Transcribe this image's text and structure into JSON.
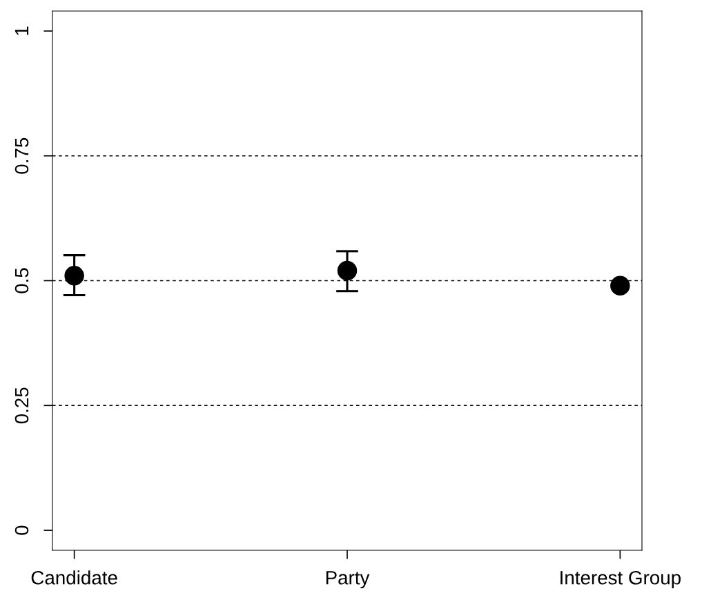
{
  "chart_data": {
    "type": "scatter",
    "categories": [
      "Candidate",
      "Party",
      "Interest Group"
    ],
    "series": [
      {
        "color": "#000000",
        "values": [
          0.51,
          0.52,
          0.49
        ],
        "errors": [
          [
            0.471,
            0.551
          ],
          [
            0.479,
            0.559
          ],
          null
        ]
      }
    ],
    "ylim": [
      -0.04,
      1.04
    ],
    "yticks": [
      0,
      0.25,
      0.5,
      0.75,
      1
    ],
    "ref_lines": [
      {
        "axis": "y",
        "value": 0.25,
        "line_style": "dashed",
        "color": "#000000"
      },
      {
        "axis": "y",
        "value": 0.5,
        "line_style": "dashed",
        "color": "#000000"
      },
      {
        "axis": "y",
        "value": 0.75,
        "line_style": "dashed",
        "color": "#000000"
      }
    ],
    "marker": "circle",
    "grid": false,
    "legend": false
  }
}
